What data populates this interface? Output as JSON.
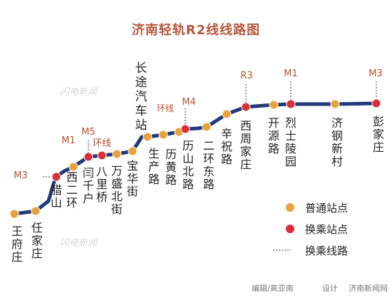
{
  "title": "济南轻轨R2线线路图",
  "watermark": "闪电新闻",
  "colors": {
    "line": "#223a7a",
    "regular": "#e8a23c",
    "transfer": "#d83035",
    "title": "#b6583d",
    "connector": "#333333"
  },
  "stations": [
    {
      "name": "王府庄",
      "type": "regular"
    },
    {
      "name": "任家庄",
      "type": "regular"
    },
    {
      "name": "腊山",
      "type": "transfer",
      "transfer": "M3"
    },
    {
      "name": "西二环",
      "type": "regular"
    },
    {
      "name": "闫千户",
      "type": "transfer",
      "transfer": "M5"
    },
    {
      "name": "八里桥",
      "type": "transfer",
      "transfer": "环线"
    },
    {
      "name": "万盛北街",
      "type": "regular"
    },
    {
      "name": "宝华街",
      "type": "regular"
    },
    {
      "name": "长途汽车站",
      "type": "regular"
    },
    {
      "name": "生产路",
      "type": "regular"
    },
    {
      "name": "历黄路",
      "type": "regular"
    },
    {
      "name": "历山北路",
      "type": "transfer",
      "transfer": "环线 M4"
    },
    {
      "name": "二环东路",
      "type": "regular"
    },
    {
      "name": "辛祝路",
      "type": "regular"
    },
    {
      "name": "西周家庄",
      "type": "transfer",
      "transfer": "R3"
    },
    {
      "name": "开源路",
      "type": "regular"
    },
    {
      "name": "烈士陵园",
      "type": "transfer",
      "transfer": "M1"
    },
    {
      "name": "济钢新村",
      "type": "regular"
    },
    {
      "name": "彭家庄",
      "type": "transfer",
      "transfer": "M3"
    }
  ],
  "extra_transfer_labels": [
    "M1"
  ],
  "legend": [
    {
      "label": "普通站点",
      "type": "regular"
    },
    {
      "label": "换乘站点",
      "type": "transfer"
    },
    {
      "label": "换乘线路",
      "type": "connector"
    }
  ],
  "footer": {
    "editor": "编辑/高亚南",
    "designer": "设计",
    "source": "济南新闻网"
  }
}
